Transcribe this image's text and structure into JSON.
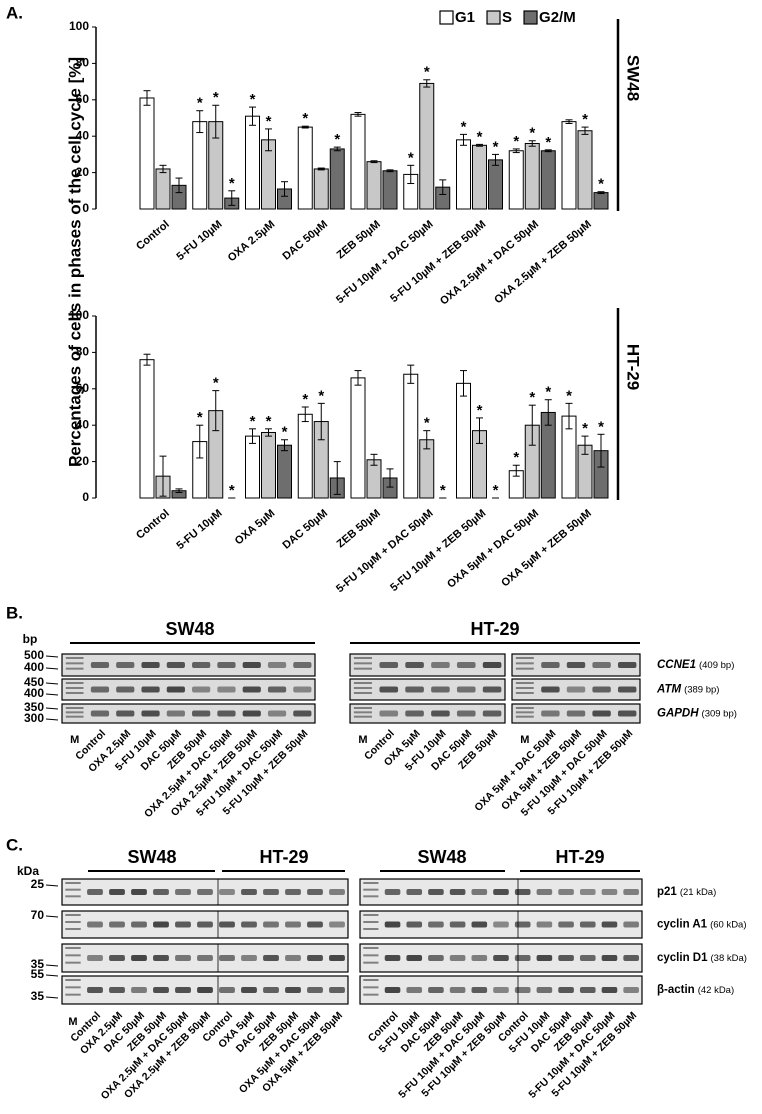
{
  "panel_labels": [
    "A.",
    "B.",
    "C."
  ],
  "chart_data": [
    {
      "type": "bar",
      "title": "SW48",
      "ylabel": "Percentages of cells in phases of the cell cycle [%]",
      "categories": [
        "Control",
        "5-FU 10µM",
        "OXA 2.5µM",
        "DAC 50µM",
        "ZEB 50µM",
        "5-FU 10µM + DAC 50µM",
        "5-FU 10µM + ZEB 50µM",
        "OXA 2.5µM + DAC 50µM",
        "OXA 2.5µM + ZEB 50µM"
      ],
      "series": [
        {
          "name": "G1",
          "color": "#ffffff",
          "values": [
            61,
            48,
            51,
            45,
            52,
            19,
            38,
            32,
            48
          ],
          "errors": [
            4,
            6,
            5,
            0.5,
            1,
            5,
            3,
            1,
            1
          ],
          "annotations": [
            null,
            "*",
            "*",
            "*",
            null,
            "*",
            "*",
            "*",
            null
          ]
        },
        {
          "name": "S",
          "color": "#c8c8c8",
          "values": [
            22,
            48,
            38,
            22,
            26,
            69,
            35,
            36,
            43
          ],
          "errors": [
            2,
            9,
            6,
            0.5,
            0.5,
            2,
            0.5,
            1.5,
            2
          ],
          "annotations": [
            null,
            "*",
            "*",
            null,
            null,
            "*",
            "*",
            "*",
            "*"
          ]
        },
        {
          "name": "G2/M",
          "color": "#6e6e6e",
          "values": [
            13,
            6,
            11,
            33,
            21,
            12,
            27,
            32,
            9
          ],
          "errors": [
            4,
            4,
            4,
            1,
            0.5,
            4,
            3,
            0.5,
            0.5
          ],
          "annotations": [
            null,
            "*",
            null,
            "*",
            null,
            null,
            "*",
            "*",
            "*"
          ]
        }
      ],
      "ylim": [
        0,
        100
      ],
      "yticks": [
        0,
        20,
        40,
        60,
        80,
        100
      ],
      "legend": "top-right"
    },
    {
      "type": "bar",
      "title": "HT-29",
      "categories": [
        "Control",
        "5-FU 10µM",
        "OXA 5µM",
        "DAC 50µM",
        "ZEB 50µM",
        "5-FU 10µM + DAC 50µM",
        "5-FU 10µM + ZEB 50µM",
        "OXA 5µM + DAC 50µM",
        "OXA 5µM + ZEB 50µM"
      ],
      "series": [
        {
          "color": "#ffffff",
          "values": [
            76,
            31,
            34,
            46,
            66,
            68,
            63,
            15,
            45
          ],
          "errors": [
            3,
            9,
            4,
            4,
            4,
            5,
            7,
            3,
            7
          ],
          "annotations": [
            null,
            "*",
            "*",
            "*",
            null,
            null,
            null,
            "*",
            "*"
          ]
        },
        {
          "color": "#c8c8c8",
          "values": [
            12,
            48,
            36,
            42,
            21,
            32,
            37,
            40,
            29
          ],
          "errors": [
            11,
            11,
            2,
            10,
            3,
            5,
            7,
            11,
            5
          ],
          "annotations": [
            null,
            "*",
            "*",
            "*",
            null,
            "*",
            "*",
            "*",
            "*"
          ]
        },
        {
          "color": "#6e6e6e",
          "values": [
            4,
            0,
            29,
            11,
            11,
            0,
            0,
            47,
            26
          ],
          "errors": [
            1,
            0,
            3,
            9,
            5,
            0,
            0,
            7,
            9
          ],
          "annotations": [
            null,
            "*",
            "*",
            null,
            null,
            "*",
            "*",
            "*",
            "*"
          ]
        }
      ],
      "ylim": [
        0,
        100
      ],
      "yticks": [
        0,
        20,
        40,
        60,
        80,
        100
      ]
    }
  ],
  "gels": {
    "unit": "bp",
    "groups": [
      "SW48",
      "HT-29"
    ],
    "markers": [
      "500",
      "400",
      "450",
      "400",
      "350",
      "300"
    ],
    "genes": [
      {
        "name": "CCNE1",
        "size": "(409 bp)"
      },
      {
        "name": "ATM",
        "size": "(389 bp)"
      },
      {
        "name": "GAPDH",
        "size": "(309 bp)"
      }
    ],
    "lanes": [
      [
        "M",
        "Control",
        "OXA 2.5µM",
        "5-FU 10µM",
        "DAC 50µM",
        "ZEB 50µM",
        "OXA 2.5µM + DAC 50µM",
        "OXA 2.5µM + ZEB 50µM",
        "5-FU 10µM + DAC 50µM",
        "5-FU 10µM + ZEB 50µM"
      ],
      [
        "M",
        "Control",
        "OXA 5µM",
        "5-FU 10µM",
        "DAC 50µM",
        "ZEB 50µM"
      ],
      [
        "M",
        "OXA 5µM + DAC 50µM",
        "OXA 5µM + ZEB 50µM",
        "5-FU 10µM + DAC 50µM",
        "5-FU 10µM + ZEB 50µM"
      ]
    ]
  },
  "blots": {
    "unit": "kDa",
    "groups": [
      "SW48",
      "HT-29",
      "SW48",
      "HT-29"
    ],
    "markers": [
      "25",
      "70",
      "35",
      "55",
      "35"
    ],
    "proteins": [
      {
        "name": "p21",
        "size": "(21 kDa)"
      },
      {
        "name": "cyclin A1",
        "size": "(60 kDa)"
      },
      {
        "name": "cyclin D1",
        "size": "(38 kDa)"
      },
      {
        "name": "β-actin",
        "size": "(42 kDa)"
      }
    ],
    "lanes": [
      [
        "M",
        "Control",
        "OXA 2.5µM",
        "DAC 50µM",
        "ZEB 50µM",
        "OXA 2.5µM + DAC 50µM",
        "OXA 2.5µM + ZEB 50µM",
        "Control",
        "OXA 5µM",
        "DAC 50µM",
        "ZEB 50µM",
        "OXA 5µM + DAC 50µM",
        "OXA 5µM + ZEB 50µM"
      ],
      [
        "Control",
        "5-FU 10µM",
        "DAC 50µM",
        "ZEB 50µM",
        "5-FU 10µM + DAC 50µM",
        "5-FU 10µM + ZEB 50µM",
        "Control",
        "5-FU 10µM",
        "DAC 50µM",
        "ZEB 50µM",
        "5-FU 10µM + DAC 50µM",
        "5-FU 10µM + ZEB 50µM"
      ]
    ]
  }
}
